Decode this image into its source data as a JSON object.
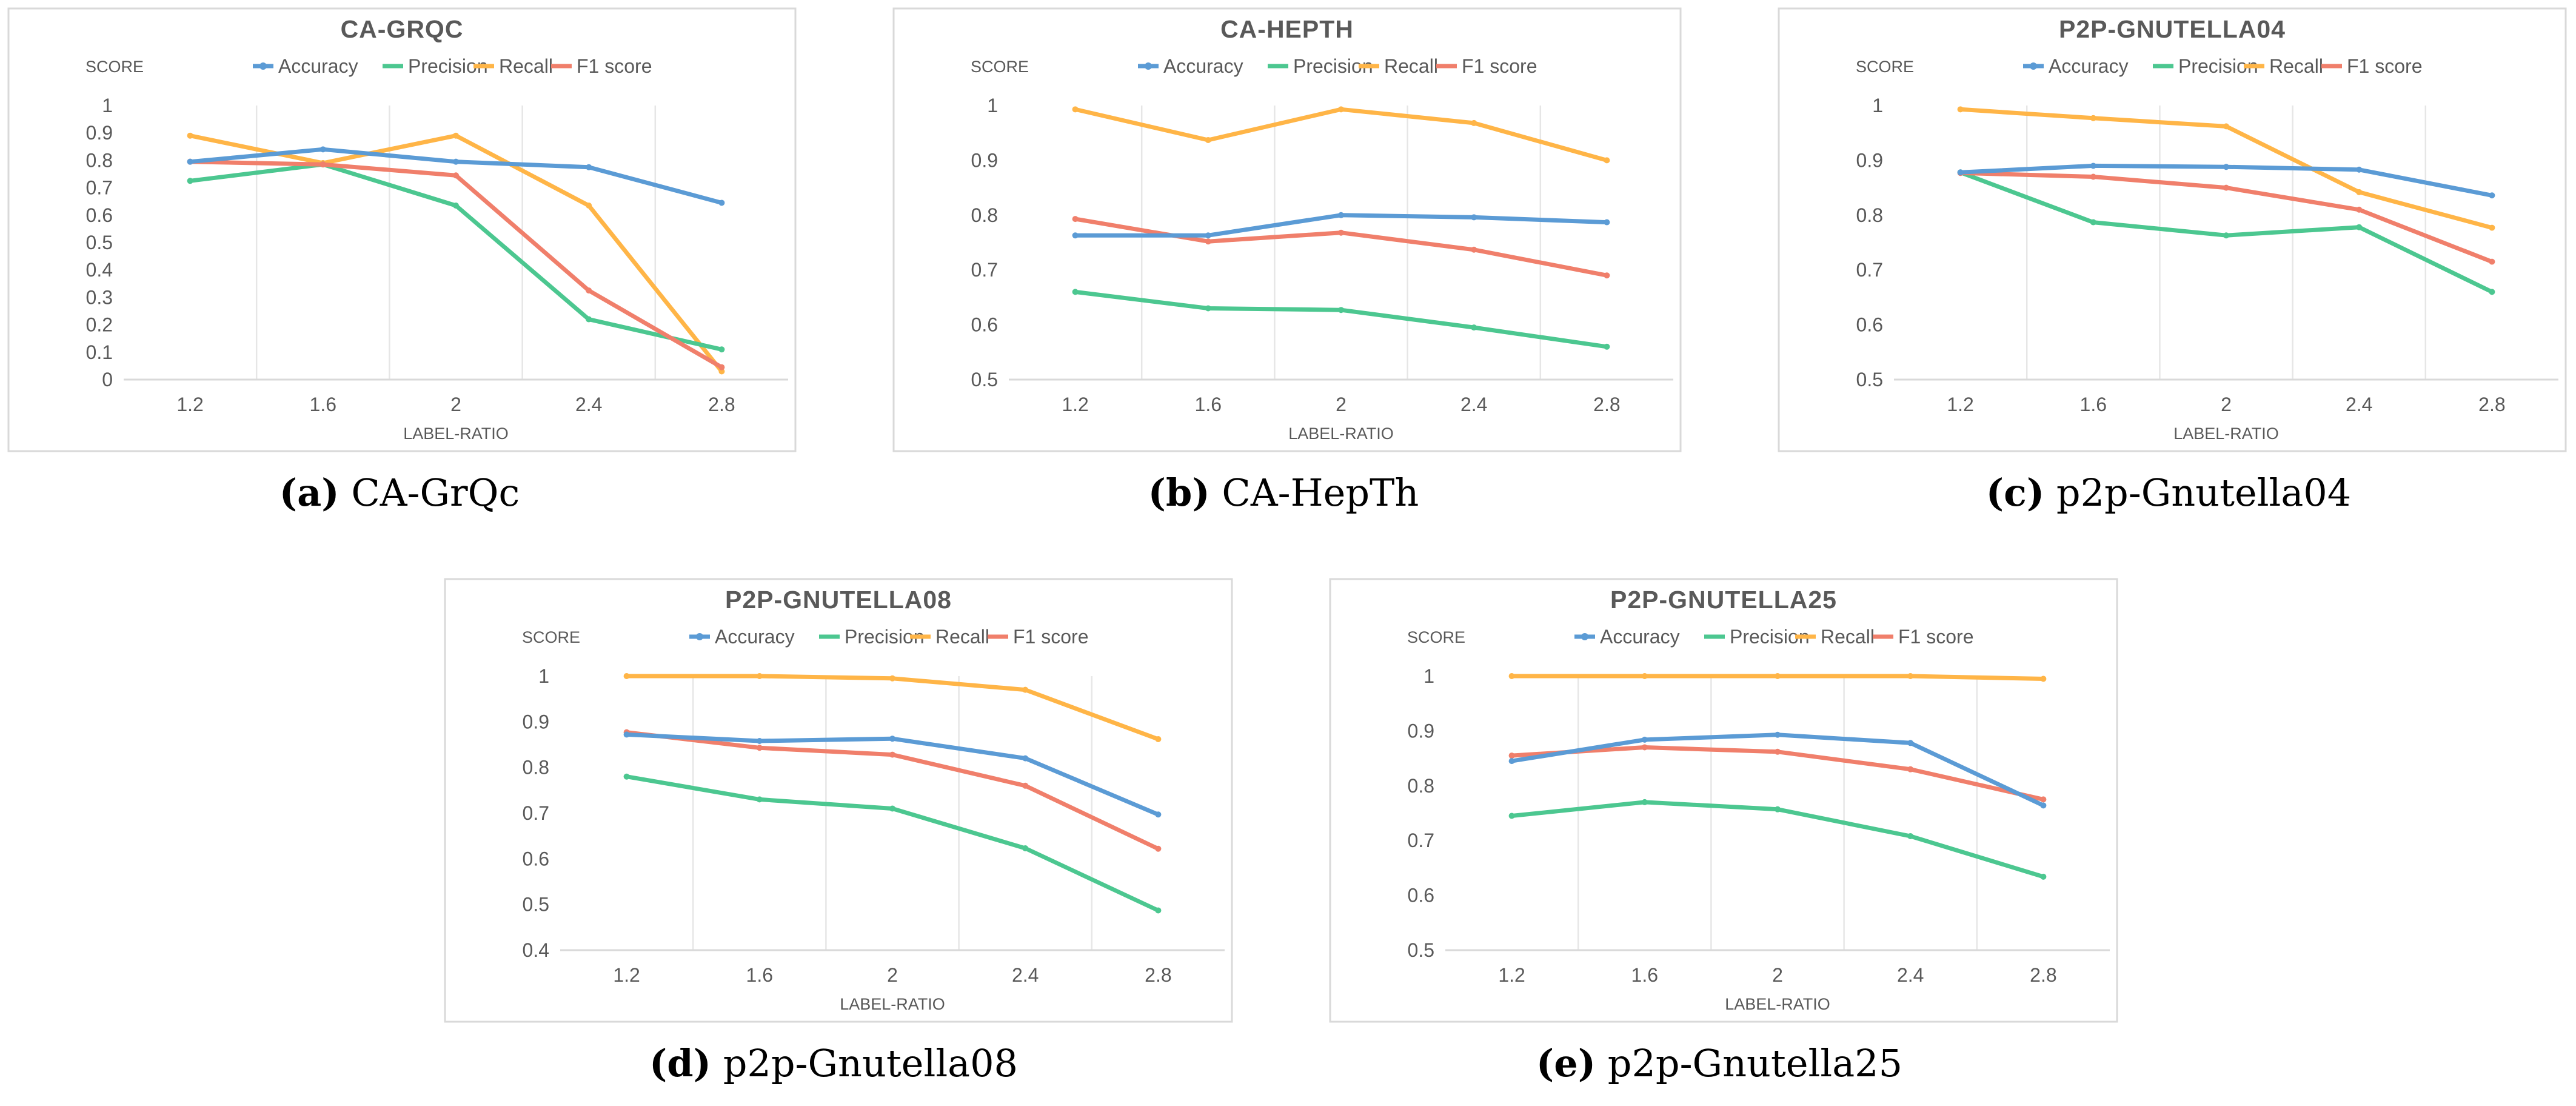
{
  "colors": {
    "accuracy": "#5b9bd5",
    "precision": "#4cc790",
    "recall": "#ffb547",
    "f1": "#f07f6b"
  },
  "chart_data": [
    {
      "type": "line",
      "title": "CA-GRQC",
      "ylabel": "SCORE",
      "xlabel": "LABEL-RATIO",
      "categories": [
        "1.2",
        "1.6",
        "2",
        "2.4",
        "2.8"
      ],
      "ylim": [
        0,
        1
      ],
      "yticks": [
        "0",
        "0.1",
        "0.2",
        "0.3",
        "0.4",
        "0.5",
        "0.6",
        "0.7",
        "0.8",
        "0.9",
        "1"
      ],
      "grid": "vertical",
      "legend": "top",
      "caption_letter": "(a)",
      "caption_name": "CA-GrQc",
      "series": [
        {
          "name": "Accuracy",
          "key": "accuracy",
          "values": [
            0.795,
            0.84,
            0.795,
            0.775,
            0.645
          ]
        },
        {
          "name": "Precision",
          "key": "precision",
          "values": [
            0.725,
            0.785,
            0.635,
            0.22,
            0.11
          ]
        },
        {
          "name": "Recall",
          "key": "recall",
          "values": [
            0.89,
            0.79,
            0.89,
            0.635,
            0.03
          ]
        },
        {
          "name": "F1 score",
          "key": "f1",
          "values": [
            0.795,
            0.785,
            0.745,
            0.325,
            0.045
          ]
        }
      ]
    },
    {
      "type": "line",
      "title": "CA-HEPTH",
      "ylabel": "SCORE",
      "xlabel": "LABEL-RATIO",
      "categories": [
        "1.2",
        "1.6",
        "2",
        "2.4",
        "2.8"
      ],
      "ylim": [
        0.5,
        1
      ],
      "yticks": [
        "0.5",
        "0.6",
        "0.7",
        "0.8",
        "0.9",
        "1"
      ],
      "grid": "vertical",
      "legend": "top",
      "caption_letter": "(b)",
      "caption_name": "CA-HepTh",
      "series": [
        {
          "name": "Accuracy",
          "key": "accuracy",
          "values": [
            0.763,
            0.763,
            0.8,
            0.796,
            0.787
          ]
        },
        {
          "name": "Precision",
          "key": "precision",
          "values": [
            0.66,
            0.63,
            0.627,
            0.595,
            0.56
          ]
        },
        {
          "name": "Recall",
          "key": "recall",
          "values": [
            0.993,
            0.937,
            0.993,
            0.968,
            0.9
          ]
        },
        {
          "name": "F1 score",
          "key": "f1",
          "values": [
            0.793,
            0.752,
            0.768,
            0.737,
            0.69
          ]
        }
      ]
    },
    {
      "type": "line",
      "title": "P2P-GNUTELLA04",
      "ylabel": "SCORE",
      "xlabel": "LABEL-RATIO",
      "categories": [
        "1.2",
        "1.6",
        "2",
        "2.4",
        "2.8"
      ],
      "ylim": [
        0.5,
        1
      ],
      "yticks": [
        "0.5",
        "0.6",
        "0.7",
        "0.8",
        "0.9",
        "1"
      ],
      "grid": "vertical",
      "legend": "top",
      "caption_letter": "(c)",
      "caption_name": "p2p-Gnutella04",
      "series": [
        {
          "name": "Accuracy",
          "key": "accuracy",
          "values": [
            0.878,
            0.89,
            0.888,
            0.883,
            0.836
          ]
        },
        {
          "name": "Precision",
          "key": "precision",
          "values": [
            0.878,
            0.787,
            0.763,
            0.778,
            0.66
          ]
        },
        {
          "name": "Recall",
          "key": "recall",
          "values": [
            0.993,
            0.977,
            0.962,
            0.842,
            0.777
          ]
        },
        {
          "name": "F1 score",
          "key": "f1",
          "values": [
            0.877,
            0.87,
            0.85,
            0.81,
            0.715
          ]
        }
      ]
    },
    {
      "type": "line",
      "title": "P2P-GNUTELLA08",
      "ylabel": "SCORE",
      "xlabel": "LABEL-RATIO",
      "categories": [
        "1.2",
        "1.6",
        "2",
        "2.4",
        "2.8"
      ],
      "ylim": [
        0.4,
        1
      ],
      "yticks": [
        "0.4",
        "0.5",
        "0.6",
        "0.7",
        "0.8",
        "0.9",
        "1"
      ],
      "grid": "vertical",
      "legend": "top",
      "caption_letter": "(d)",
      "caption_name": "p2p-Gnutella08",
      "series": [
        {
          "name": "Accuracy",
          "key": "accuracy",
          "values": [
            0.872,
            0.858,
            0.863,
            0.82,
            0.697
          ]
        },
        {
          "name": "Precision",
          "key": "precision",
          "values": [
            0.78,
            0.73,
            0.71,
            0.623,
            0.487
          ]
        },
        {
          "name": "Recall",
          "key": "recall",
          "values": [
            1.0,
            1.0,
            0.995,
            0.97,
            0.862
          ]
        },
        {
          "name": "F1 score",
          "key": "f1",
          "values": [
            0.877,
            0.843,
            0.828,
            0.76,
            0.622
          ]
        }
      ]
    },
    {
      "type": "line",
      "title": "P2P-GNUTELLA25",
      "ylabel": "SCORE",
      "xlabel": "LABEL-RATIO",
      "categories": [
        "1.2",
        "1.6",
        "2",
        "2.4",
        "2.8"
      ],
      "ylim": [
        0.5,
        1
      ],
      "yticks": [
        "0.5",
        "0.6",
        "0.7",
        "0.8",
        "0.9",
        "1"
      ],
      "grid": "vertical",
      "legend": "top",
      "caption_letter": "(e)",
      "caption_name": "p2p-Gnutella25",
      "series": [
        {
          "name": "Accuracy",
          "key": "accuracy",
          "values": [
            0.845,
            0.884,
            0.893,
            0.878,
            0.764
          ]
        },
        {
          "name": "Precision",
          "key": "precision",
          "values": [
            0.745,
            0.77,
            0.757,
            0.708,
            0.634
          ]
        },
        {
          "name": "Recall",
          "key": "recall",
          "values": [
            1.0,
            1.0,
            1.0,
            1.0,
            0.995
          ]
        },
        {
          "name": "F1 score",
          "key": "f1",
          "values": [
            0.855,
            0.87,
            0.862,
            0.83,
            0.775
          ]
        }
      ]
    }
  ]
}
